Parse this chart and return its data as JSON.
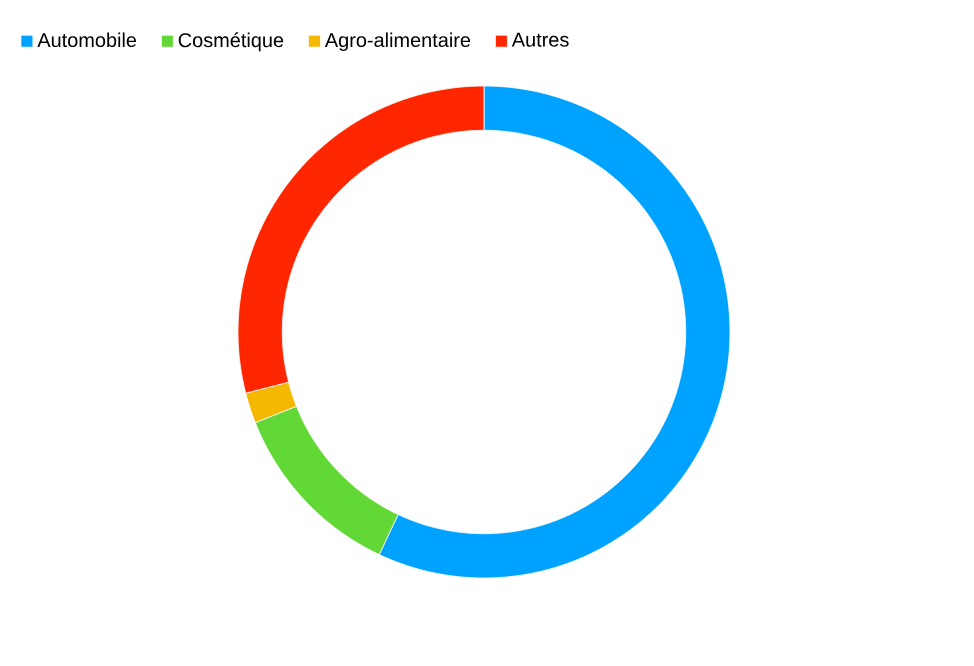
{
  "chart_data": {
    "type": "donut",
    "categories": [
      "Automobile",
      "Cosmétique",
      "Agro-alimentaire",
      "Autres"
    ],
    "values": [
      57,
      12,
      2,
      29
    ],
    "colors": [
      "#00a2ff",
      "#62d836",
      "#f5b800",
      "#ff2600"
    ],
    "legend": "top left"
  }
}
